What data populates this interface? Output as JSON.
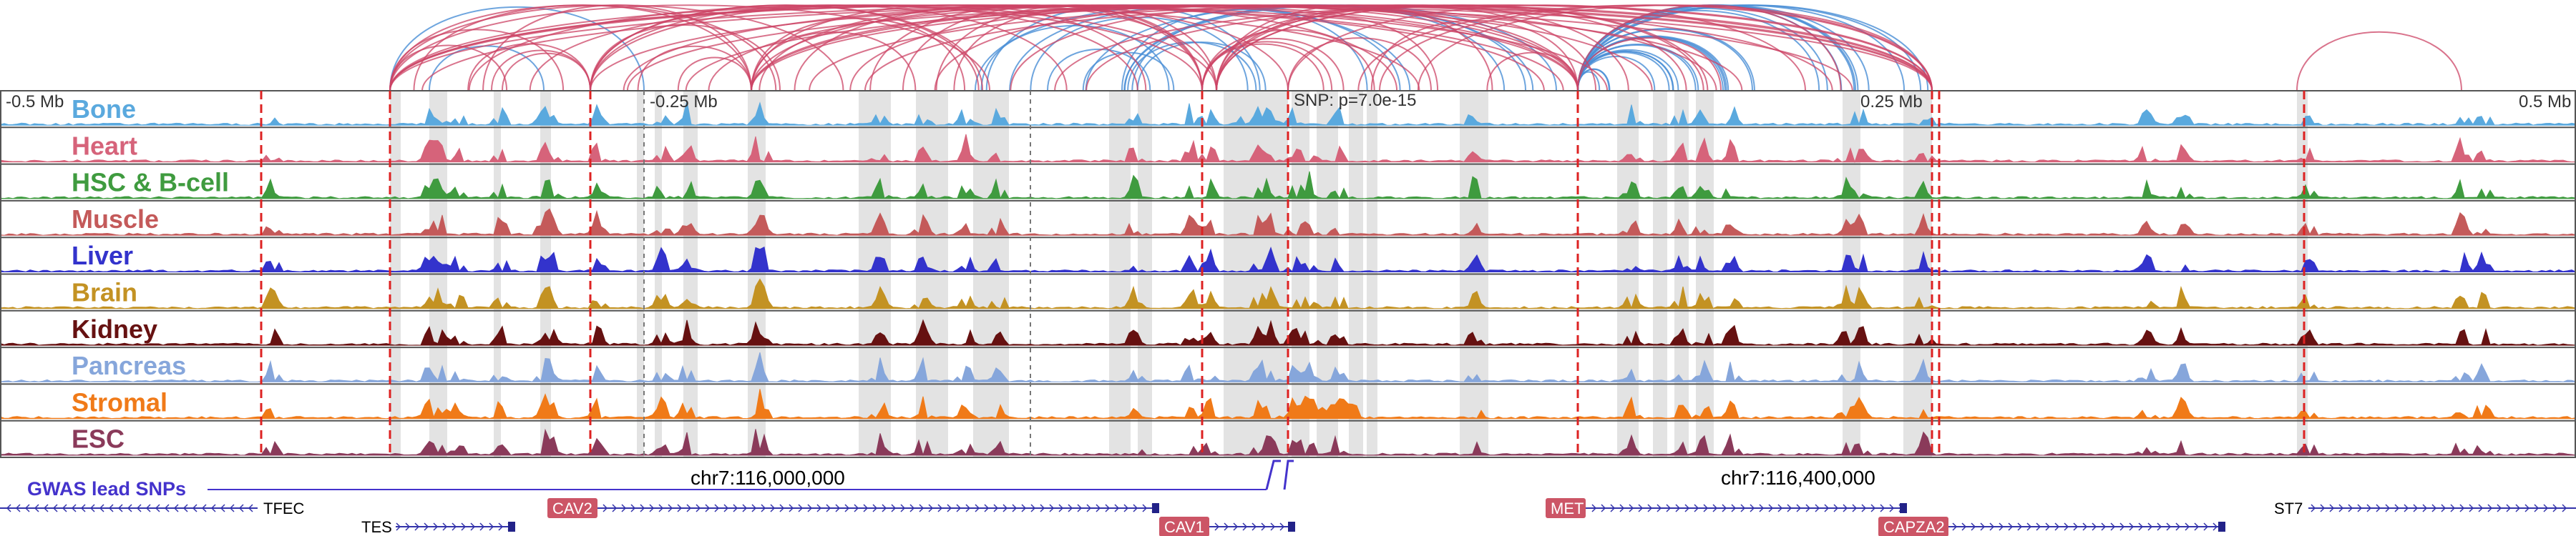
{
  "chart_data": {
    "type": "area",
    "title": "",
    "xlabel": "",
    "ylabel": "",
    "region": "chr7",
    "xlim_mb": [
      115.61,
      116.53
    ],
    "axis_ticks": [
      "-0.5 Mb",
      "-0.25 Mb",
      "0.25 Mb",
      "0.5 Mb"
    ],
    "snp_label": "SNP: p=7.0e-15",
    "coord_labels": [
      "chr7:116,000,000",
      "chr7:116,400,000"
    ],
    "gwas_label": "GWAS lead SNPs",
    "tracks": [
      {
        "name": "Bone",
        "color": "#5aa9de"
      },
      {
        "name": "Heart",
        "color": "#d6637a"
      },
      {
        "name": "HSC & B-cell",
        "color": "#3f9b3f"
      },
      {
        "name": "Muscle",
        "color": "#c45a5a"
      },
      {
        "name": "Liver",
        "color": "#3333cc"
      },
      {
        "name": "Brain",
        "color": "#c39223"
      },
      {
        "name": "Kidney",
        "color": "#661111"
      },
      {
        "name": "Pancreas",
        "color": "#86a6db"
      },
      {
        "name": "Stromal",
        "color": "#f07a18"
      },
      {
        "name": "ESC",
        "color": "#8a3a5a"
      }
    ],
    "genes": [
      {
        "name": "TFEC",
        "highlight": false
      },
      {
        "name": "CAV2",
        "highlight": true
      },
      {
        "name": "TES",
        "highlight": false
      },
      {
        "name": "CAV1",
        "highlight": true
      },
      {
        "name": "MET",
        "highlight": true
      },
      {
        "name": "CAPZA2",
        "highlight": true
      },
      {
        "name": "ST7",
        "highlight": false
      }
    ]
  }
}
